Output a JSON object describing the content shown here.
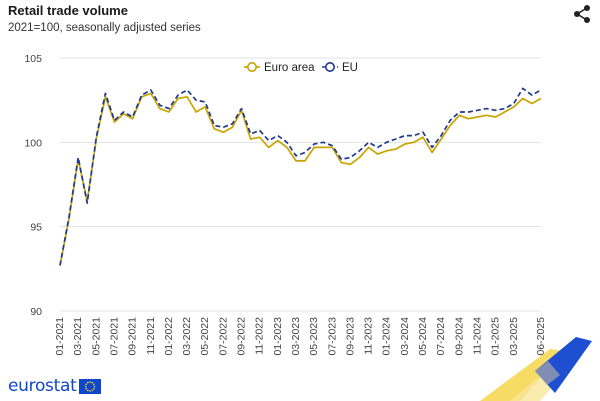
{
  "header": {
    "title": "Retail trade volume",
    "subtitle": "2021=100, seasonally adjusted series"
  },
  "share_icon": "share-icon",
  "logo": {
    "text": "eurostat"
  },
  "colors": {
    "euro_area": "#c9a400",
    "eu": "#1f3a8f",
    "grid": "#e3e3e3"
  },
  "chart_data": {
    "type": "line",
    "x_tick_labels": [
      "01-2021",
      "03-2021",
      "05-2021",
      "07-2021",
      "09-2021",
      "11-2021",
      "01-2022",
      "03-2022",
      "05-2022",
      "07-2022",
      "09-2022",
      "11-2022",
      "01-2023",
      "03-2023",
      "05-2023",
      "07-2023",
      "09-2023",
      "11-2023",
      "01-2024",
      "03-2024",
      "05-2024",
      "07-2024",
      "09-2024",
      "11-2024",
      "01-2025",
      "03-2025",
      "06-2025"
    ],
    "ylim": [
      90,
      105
    ],
    "yticks": [
      90,
      95,
      100,
      105
    ],
    "grid": "horizontal",
    "legend": {
      "placement": "top-center"
    },
    "series": [
      {
        "name": "Euro area",
        "style": "solid",
        "values": [
          92.7,
          95.5,
          99.0,
          96.5,
          100.2,
          102.7,
          101.2,
          101.7,
          101.4,
          102.7,
          102.9,
          102.0,
          101.8,
          102.6,
          102.7,
          101.8,
          102.1,
          100.8,
          100.6,
          100.9,
          101.9,
          100.2,
          100.3,
          99.7,
          100.1,
          99.7,
          98.9,
          98.9,
          99.7,
          99.7,
          99.7,
          98.8,
          98.7,
          99.1,
          99.7,
          99.3,
          99.5,
          99.6,
          99.9,
          100.0,
          100.3,
          99.4,
          100.2,
          101.0,
          101.6,
          101.4,
          101.5,
          101.6,
          101.5,
          101.8,
          102.1,
          102.6,
          102.3,
          102.6
        ]
      },
      {
        "name": "EU",
        "style": "dashed",
        "values": [
          92.7,
          95.6,
          99.1,
          96.4,
          100.3,
          102.9,
          101.3,
          101.8,
          101.5,
          102.8,
          103.1,
          102.2,
          102.0,
          102.8,
          103.1,
          102.5,
          102.4,
          101.0,
          100.9,
          101.1,
          102.0,
          100.5,
          100.7,
          100.1,
          100.4,
          100.0,
          99.2,
          99.4,
          99.9,
          100.0,
          99.8,
          99.0,
          99.1,
          99.5,
          100.0,
          99.7,
          100.0,
          100.2,
          100.4,
          100.4,
          100.6,
          99.7,
          100.4,
          101.3,
          101.8,
          101.8,
          101.9,
          102.0,
          101.9,
          102.0,
          102.3,
          103.2,
          102.8,
          103.1
        ]
      }
    ]
  }
}
